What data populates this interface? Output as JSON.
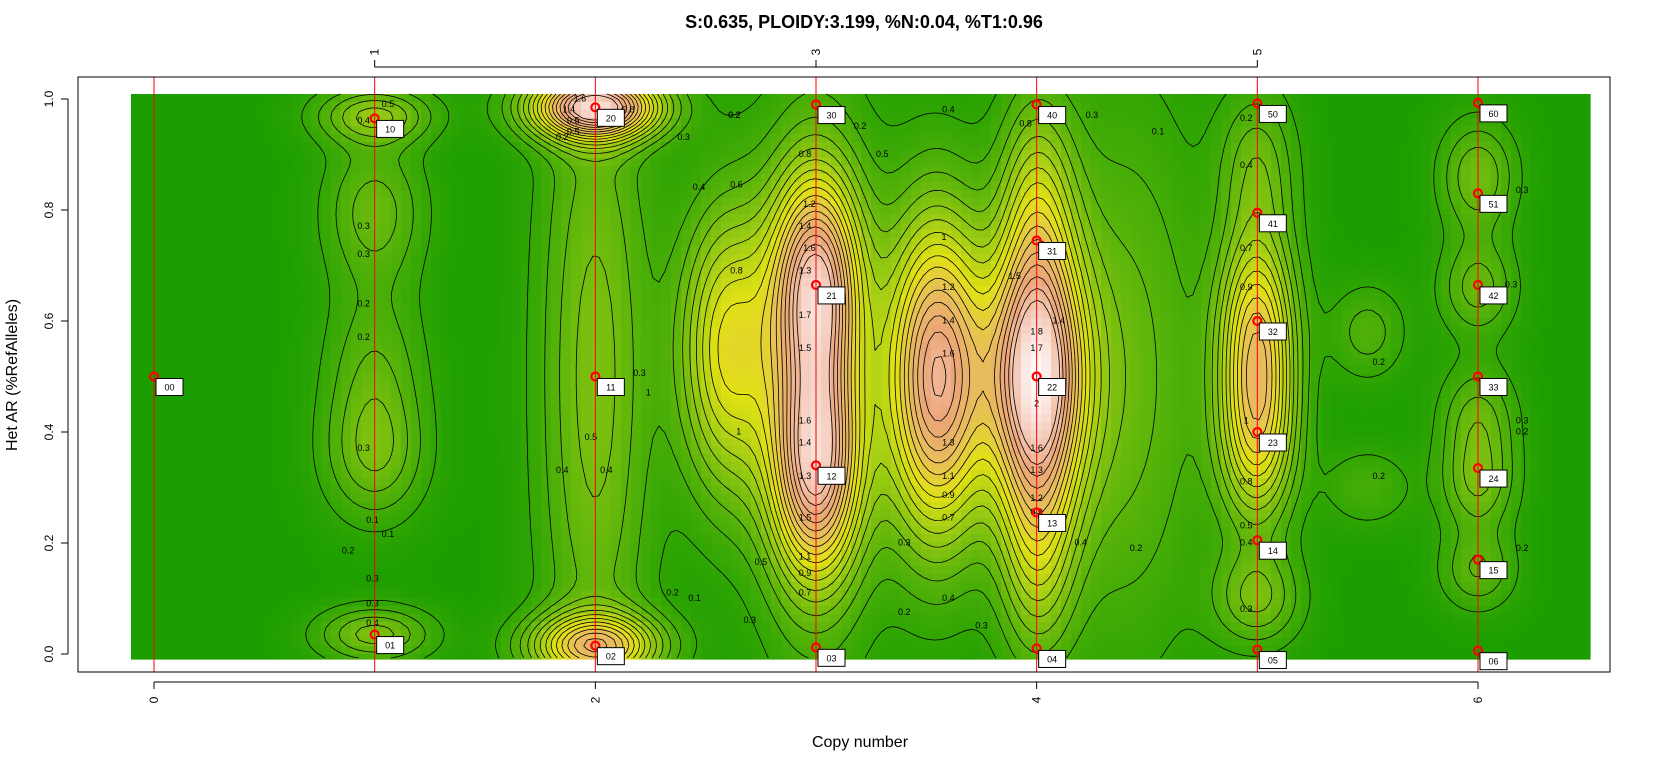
{
  "chart_data": {
    "type": "heatmap",
    "title": "S:0.635, PLOIDY:3.199, %N:0.04, %T1:0.96",
    "xlabel": "Copy number",
    "ylabel": "Het AR (%RefAlleles)",
    "xlim": [
      -0.1,
      6.6
    ],
    "ylim": [
      -0.01,
      1.01
    ],
    "x_ticks_bottom": [
      0,
      2,
      4,
      6
    ],
    "x_ticks_top": [
      1,
      3,
      5
    ],
    "y_ticks": [
      0.0,
      0.2,
      0.4,
      0.6,
      0.8,
      1.0
    ],
    "y_tick_labels": [
      "0.0",
      "0.2",
      "0.4",
      "0.6",
      "0.8",
      "1.0"
    ],
    "vlines": [
      0,
      1,
      2,
      3,
      4,
      5,
      6
    ],
    "colors": {
      "background": "#1c9e00",
      "contour": "#000000",
      "vline": "#ff0000",
      "point": "#ff0000"
    },
    "peaks": [
      {
        "x": 1,
        "y": 0.035,
        "sx": 0.18,
        "sy": 0.035,
        "h": 0.45
      },
      {
        "x": 1,
        "y": 0.97,
        "sx": 0.18,
        "sy": 0.035,
        "h": 0.5
      },
      {
        "x": 1,
        "y": 0.8,
        "sx": 0.16,
        "sy": 0.09,
        "h": 0.35
      },
      {
        "x": 1,
        "y": 0.5,
        "sx": 0.16,
        "sy": 0.12,
        "h": 0.3
      },
      {
        "x": 1,
        "y": 0.35,
        "sx": 0.16,
        "sy": 0.08,
        "h": 0.3
      },
      {
        "x": 2,
        "y": 0.985,
        "sx": 0.2,
        "sy": 0.04,
        "h": 1.7
      },
      {
        "x": 2,
        "y": 0.015,
        "sx": 0.2,
        "sy": 0.04,
        "h": 1.1
      },
      {
        "x": 2,
        "y": 0.5,
        "sx": 0.18,
        "sy": 0.45,
        "h": 0.45
      },
      {
        "x": 2.6,
        "y": 0.55,
        "sx": 0.15,
        "sy": 0.18,
        "h": 0.9
      },
      {
        "x": 3,
        "y": 0.665,
        "sx": 0.14,
        "sy": 0.14,
        "h": 1.5
      },
      {
        "x": 3,
        "y": 0.34,
        "sx": 0.14,
        "sy": 0.14,
        "h": 1.5
      },
      {
        "x": 3,
        "y": 0.5,
        "sx": 0.2,
        "sy": 0.4,
        "h": 0.3
      },
      {
        "x": 3.55,
        "y": 0.5,
        "sx": 0.16,
        "sy": 0.2,
        "h": 1.6
      },
      {
        "x": 4,
        "y": 0.5,
        "sx": 0.15,
        "sy": 0.16,
        "h": 1.8
      },
      {
        "x": 4,
        "y": 0.8,
        "sx": 0.12,
        "sy": 0.15,
        "h": 0.6
      },
      {
        "x": 4,
        "y": 0.2,
        "sx": 0.12,
        "sy": 0.15,
        "h": 0.6
      },
      {
        "x": 4.4,
        "y": 0.5,
        "sx": 0.25,
        "sy": 0.35,
        "h": 0.35
      },
      {
        "x": 5,
        "y": 0.6,
        "sx": 0.12,
        "sy": 0.12,
        "h": 0.9
      },
      {
        "x": 5,
        "y": 0.4,
        "sx": 0.12,
        "sy": 0.12,
        "h": 0.9
      },
      {
        "x": 5,
        "y": 0.1,
        "sx": 0.14,
        "sy": 0.06,
        "h": 0.4
      },
      {
        "x": 5,
        "y": 0.88,
        "sx": 0.12,
        "sy": 0.1,
        "h": 0.35
      },
      {
        "x": 5.5,
        "y": 0.58,
        "sx": 0.12,
        "sy": 0.06,
        "h": 0.25
      },
      {
        "x": 5.5,
        "y": 0.3,
        "sx": 0.14,
        "sy": 0.05,
        "h": 0.2
      },
      {
        "x": 6,
        "y": 0.86,
        "sx": 0.12,
        "sy": 0.07,
        "h": 0.4
      },
      {
        "x": 6,
        "y": 0.66,
        "sx": 0.12,
        "sy": 0.06,
        "h": 0.35
      },
      {
        "x": 6,
        "y": 0.42,
        "sx": 0.12,
        "sy": 0.07,
        "h": 0.35
      },
      {
        "x": 6,
        "y": 0.3,
        "sx": 0.12,
        "sy": 0.06,
        "h": 0.35
      },
      {
        "x": 6,
        "y": 0.15,
        "sx": 0.12,
        "sy": 0.05,
        "h": 0.3
      }
    ],
    "contour_levels": [
      0.1,
      0.2,
      0.3,
      0.4,
      0.5,
      0.6,
      0.7,
      0.8,
      0.9,
      1.0,
      1.1,
      1.2,
      1.3,
      1.4,
      1.5,
      1.6,
      1.7
    ],
    "contour_labels": [
      {
        "x": 0.95,
        "y": 0.96,
        "text": "0.4"
      },
      {
        "x": 1.06,
        "y": 0.99,
        "text": "0.5"
      },
      {
        "x": 0.95,
        "y": 0.77,
        "text": "0.3"
      },
      {
        "x": 0.95,
        "y": 0.72,
        "text": "0.3"
      },
      {
        "x": 0.95,
        "y": 0.63,
        "text": "0.2"
      },
      {
        "x": 0.95,
        "y": 0.57,
        "text": "0.2"
      },
      {
        "x": 0.95,
        "y": 0.37,
        "text": "0.3"
      },
      {
        "x": 0.99,
        "y": 0.24,
        "text": "0.1"
      },
      {
        "x": 1.06,
        "y": 0.215,
        "text": "0.1"
      },
      {
        "x": 0.88,
        "y": 0.185,
        "text": "0.2"
      },
      {
        "x": 0.99,
        "y": 0.135,
        "text": "0.3"
      },
      {
        "x": 0.99,
        "y": 0.09,
        "text": "0.3"
      },
      {
        "x": 0.99,
        "y": 0.055,
        "text": "0.4"
      },
      {
        "x": 1.9,
        "y": 0.96,
        "text": "0.5"
      },
      {
        "x": 1.88,
        "y": 0.98,
        "text": "1.4"
      },
      {
        "x": 1.93,
        "y": 1.0,
        "text": "1.6"
      },
      {
        "x": 1.9,
        "y": 0.94,
        "text": "0.5"
      },
      {
        "x": 1.85,
        "y": 0.93,
        "text": "0.2"
      },
      {
        "x": 2.15,
        "y": 0.98,
        "text": "0.8"
      },
      {
        "x": 2.4,
        "y": 0.93,
        "text": "0.3"
      },
      {
        "x": 2.47,
        "y": 0.84,
        "text": "0.4"
      },
      {
        "x": 2.64,
        "y": 0.845,
        "text": "0.6"
      },
      {
        "x": 2.63,
        "y": 0.97,
        "text": "0.2"
      },
      {
        "x": 2.64,
        "y": 0.69,
        "text": "0.8"
      },
      {
        "x": 2.2,
        "y": 0.505,
        "text": "0.3"
      },
      {
        "x": 2.24,
        "y": 0.47,
        "text": "1"
      },
      {
        "x": 1.98,
        "y": 0.39,
        "text": "0.5"
      },
      {
        "x": 1.85,
        "y": 0.33,
        "text": "0.4"
      },
      {
        "x": 2.05,
        "y": 0.33,
        "text": "0.4"
      },
      {
        "x": 2.95,
        "y": 0.9,
        "text": "0.8"
      },
      {
        "x": 2.97,
        "y": 0.81,
        "text": "1.2"
      },
      {
        "x": 2.95,
        "y": 0.77,
        "text": "1.4"
      },
      {
        "x": 2.97,
        "y": 0.73,
        "text": "1.6"
      },
      {
        "x": 2.95,
        "y": 0.69,
        "text": "1.3"
      },
      {
        "x": 2.95,
        "y": 0.61,
        "text": "1.7"
      },
      {
        "x": 2.95,
        "y": 0.55,
        "text": "1.5"
      },
      {
        "x": 2.95,
        "y": 0.42,
        "text": "1.6"
      },
      {
        "x": 2.95,
        "y": 0.38,
        "text": "1.4"
      },
      {
        "x": 2.95,
        "y": 0.32,
        "text": "1.3"
      },
      {
        "x": 2.95,
        "y": 0.245,
        "text": "1.5"
      },
      {
        "x": 2.95,
        "y": 0.175,
        "text": "1.1"
      },
      {
        "x": 2.95,
        "y": 0.145,
        "text": "0.9"
      },
      {
        "x": 2.95,
        "y": 0.11,
        "text": "0.7"
      },
      {
        "x": 2.65,
        "y": 0.4,
        "text": "1"
      },
      {
        "x": 3.2,
        "y": 0.95,
        "text": "0.2"
      },
      {
        "x": 3.3,
        "y": 0.9,
        "text": "0.5"
      },
      {
        "x": 2.63,
        "y": 0.97,
        "text": "0.2"
      },
      {
        "x": 3.6,
        "y": 0.98,
        "text": "0.4"
      },
      {
        "x": 3.58,
        "y": 0.75,
        "text": "1"
      },
      {
        "x": 3.6,
        "y": 0.66,
        "text": "1.2"
      },
      {
        "x": 3.6,
        "y": 0.6,
        "text": "1.4"
      },
      {
        "x": 3.6,
        "y": 0.54,
        "text": "1.6"
      },
      {
        "x": 3.6,
        "y": 0.38,
        "text": "1.3"
      },
      {
        "x": 3.6,
        "y": 0.32,
        "text": "1.1"
      },
      {
        "x": 3.6,
        "y": 0.285,
        "text": "0.9"
      },
      {
        "x": 3.6,
        "y": 0.245,
        "text": "0.7"
      },
      {
        "x": 3.4,
        "y": 0.2,
        "text": "0.3"
      },
      {
        "x": 3.6,
        "y": 0.1,
        "text": "0.4"
      },
      {
        "x": 3.4,
        "y": 0.075,
        "text": "0.2"
      },
      {
        "x": 3.75,
        "y": 0.05,
        "text": "0.3"
      },
      {
        "x": 2.7,
        "y": 0.06,
        "text": "0.3"
      },
      {
        "x": 2.45,
        "y": 0.1,
        "text": "0.1"
      },
      {
        "x": 2.35,
        "y": 0.11,
        "text": "0.2"
      },
      {
        "x": 2.75,
        "y": 0.165,
        "text": "0.5"
      },
      {
        "x": 3.95,
        "y": 0.955,
        "text": "0.8"
      },
      {
        "x": 3.9,
        "y": 0.68,
        "text": "1.5"
      },
      {
        "x": 4.1,
        "y": 0.6,
        "text": "1.4"
      },
      {
        "x": 4.0,
        "y": 0.58,
        "text": "1.8"
      },
      {
        "x": 4.0,
        "y": 0.55,
        "text": "1.7"
      },
      {
        "x": 4.0,
        "y": 0.45,
        "text": "2"
      },
      {
        "x": 4.0,
        "y": 0.37,
        "text": "1.6"
      },
      {
        "x": 4.0,
        "y": 0.33,
        "text": "1.3"
      },
      {
        "x": 4.0,
        "y": 0.28,
        "text": "1.2"
      },
      {
        "x": 4.0,
        "y": 0.255,
        "text": "0.9"
      },
      {
        "x": 4.2,
        "y": 0.2,
        "text": "0.4"
      },
      {
        "x": 4.45,
        "y": 0.19,
        "text": "0.2"
      },
      {
        "x": 4.25,
        "y": 0.97,
        "text": "0.3"
      },
      {
        "x": 4.55,
        "y": 0.94,
        "text": "0.1"
      },
      {
        "x": 4.95,
        "y": 0.965,
        "text": "0.2"
      },
      {
        "x": 4.95,
        "y": 0.88,
        "text": "0.4"
      },
      {
        "x": 4.95,
        "y": 0.73,
        "text": "0.7"
      },
      {
        "x": 4.95,
        "y": 0.66,
        "text": "0.9"
      },
      {
        "x": 4.95,
        "y": 0.42,
        "text": "1"
      },
      {
        "x": 4.95,
        "y": 0.31,
        "text": "0.8"
      },
      {
        "x": 4.95,
        "y": 0.23,
        "text": "0.5"
      },
      {
        "x": 4.95,
        "y": 0.2,
        "text": "0.4"
      },
      {
        "x": 4.95,
        "y": 0.08,
        "text": "0.3"
      },
      {
        "x": 5.55,
        "y": 0.525,
        "text": "0.2"
      },
      {
        "x": 5.55,
        "y": 0.32,
        "text": "0.2"
      },
      {
        "x": 6.15,
        "y": 0.665,
        "text": "0.3"
      },
      {
        "x": 6.2,
        "y": 0.835,
        "text": "0.3"
      },
      {
        "x": 6.2,
        "y": 0.42,
        "text": "0.3"
      },
      {
        "x": 6.2,
        "y": 0.4,
        "text": "0.2"
      },
      {
        "x": 6.2,
        "y": 0.19,
        "text": "0.2"
      }
    ],
    "points": [
      {
        "x": 0,
        "y": 0.5,
        "label": "00"
      },
      {
        "x": 1,
        "y": 0.035,
        "label": "01"
      },
      {
        "x": 1,
        "y": 0.965,
        "label": "10"
      },
      {
        "x": 2,
        "y": 0.015,
        "label": "02"
      },
      {
        "x": 2,
        "y": 0.5,
        "label": "11"
      },
      {
        "x": 2,
        "y": 0.985,
        "label": "20"
      },
      {
        "x": 3,
        "y": 0.012,
        "label": "03"
      },
      {
        "x": 3,
        "y": 0.34,
        "label": "12"
      },
      {
        "x": 3,
        "y": 0.665,
        "label": "21"
      },
      {
        "x": 3,
        "y": 0.99,
        "label": "30"
      },
      {
        "x": 4,
        "y": 0.01,
        "label": "04"
      },
      {
        "x": 4,
        "y": 0.255,
        "label": "13"
      },
      {
        "x": 4,
        "y": 0.5,
        "label": "22"
      },
      {
        "x": 4,
        "y": 0.745,
        "label": "31"
      },
      {
        "x": 4,
        "y": 0.99,
        "label": "40"
      },
      {
        "x": 5,
        "y": 0.008,
        "label": "05"
      },
      {
        "x": 5,
        "y": 0.205,
        "label": "14"
      },
      {
        "x": 5,
        "y": 0.4,
        "label": "23"
      },
      {
        "x": 5,
        "y": 0.6,
        "label": "32"
      },
      {
        "x": 5,
        "y": 0.795,
        "label": "41"
      },
      {
        "x": 5,
        "y": 0.992,
        "label": "50"
      },
      {
        "x": 6,
        "y": 0.006,
        "label": "06"
      },
      {
        "x": 6,
        "y": 0.17,
        "label": "15"
      },
      {
        "x": 6,
        "y": 0.335,
        "label": "24"
      },
      {
        "x": 6,
        "y": 0.5,
        "label": "33"
      },
      {
        "x": 6,
        "y": 0.665,
        "label": "42"
      },
      {
        "x": 6,
        "y": 0.83,
        "label": "51"
      },
      {
        "x": 6,
        "y": 0.993,
        "label": "60"
      }
    ]
  }
}
